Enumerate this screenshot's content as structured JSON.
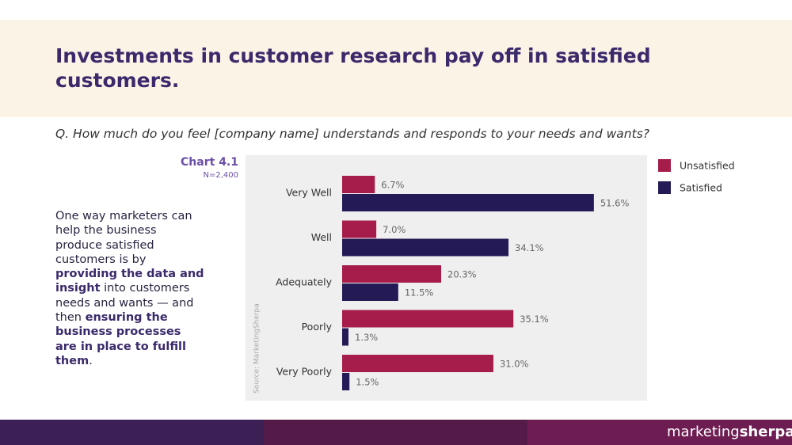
{
  "title": "Investments in customer research pay off in satisfied customers.",
  "question": "Q. How much do you feel [company name] understands and responds to your needs and wants?",
  "paragraph": [
    {
      "text": "One way marketers can help the business produce satisfied customers is by ",
      "bold": false
    },
    {
      "text": "providing the data and insight",
      "bold": true
    },
    {
      "text": " into customers needs and wants — and then ",
      "bold": false
    },
    {
      "text": "ensuring the business processes are in place to fulfill them",
      "bold": true
    },
    {
      "text": ".",
      "bold": false
    }
  ],
  "logo": {
    "light": "marketing",
    "bold": "sherpa"
  },
  "chart_data": {
    "type": "hbar",
    "title": "Chart 4.1",
    "subtitle": "N=2,400",
    "source": "Source: MarketingSherpa",
    "categories": [
      "Very Well",
      "Well",
      "Adequately",
      "Poorly",
      "Very Poorly"
    ],
    "xlim": [
      0,
      62.5
    ],
    "legend": "right",
    "series": [
      {
        "name": "Unsatisfied",
        "color": "#a61c4a",
        "values": [
          6.7,
          7.0,
          20.3,
          35.1,
          31.0
        ],
        "value_labels": [
          "6.7%",
          "7.0%",
          "20.3%",
          "35.1%",
          "31.0%"
        ]
      },
      {
        "name": "Satisfied",
        "color": "#241a55",
        "values": [
          51.6,
          34.1,
          11.5,
          1.3,
          1.5
        ],
        "value_labels": [
          "51.6%",
          "34.1%",
          "11.5%",
          "1.3%",
          "1.5%"
        ]
      }
    ]
  }
}
